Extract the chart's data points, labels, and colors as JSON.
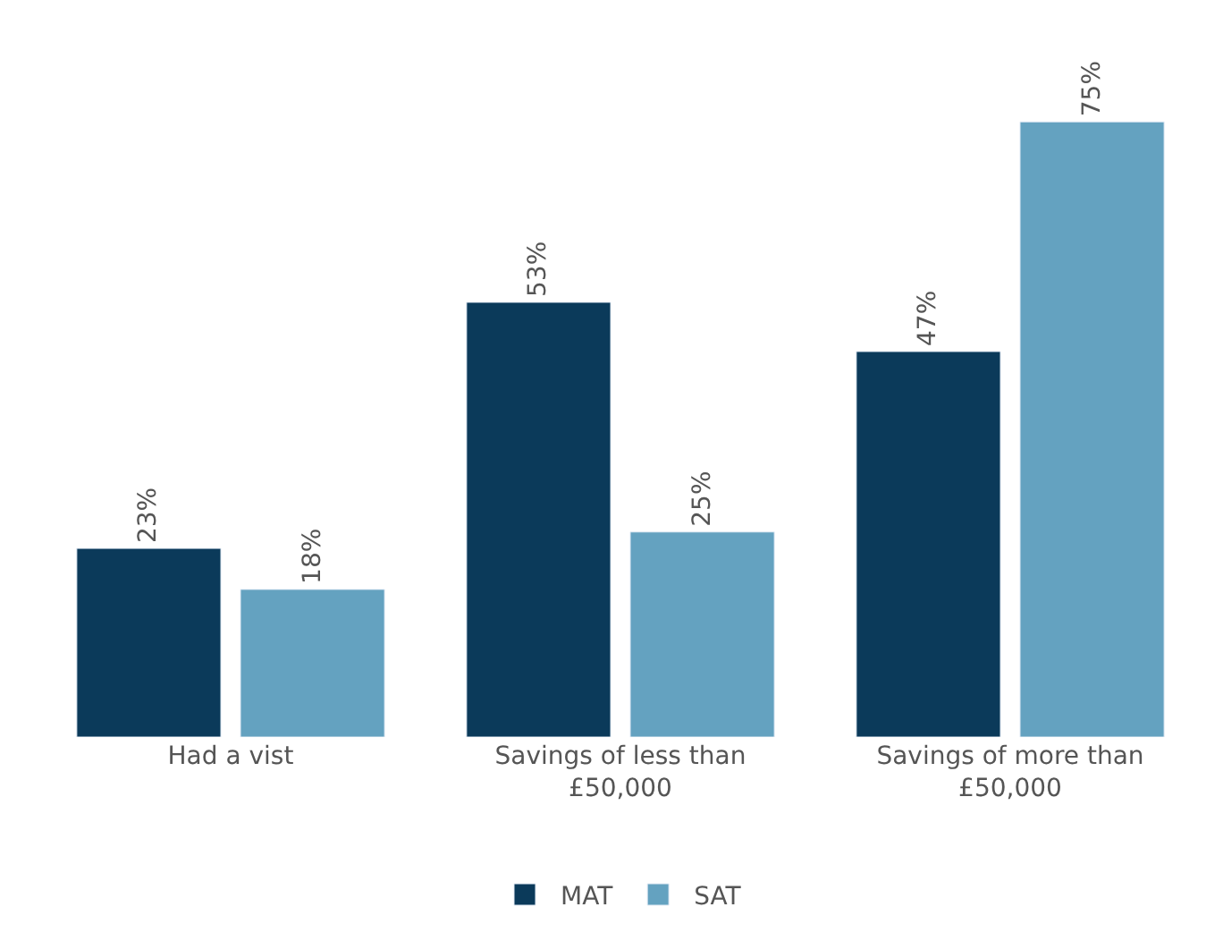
{
  "chart_data": {
    "type": "bar",
    "categories": [
      "Had a vist",
      "Savings of less than £50,000",
      "Savings of more than £50,000"
    ],
    "series": [
      {
        "name": "MAT",
        "color": "#0b3a5a",
        "values": [
          23,
          53,
          47
        ],
        "value_labels": [
          "23%",
          "53%",
          "47%"
        ]
      },
      {
        "name": "SAT",
        "color": "#64a2c0",
        "values": [
          18,
          25,
          75
        ],
        "value_labels": [
          "18%",
          "25%",
          "75%"
        ]
      }
    ],
    "legend": "bottom"
  }
}
